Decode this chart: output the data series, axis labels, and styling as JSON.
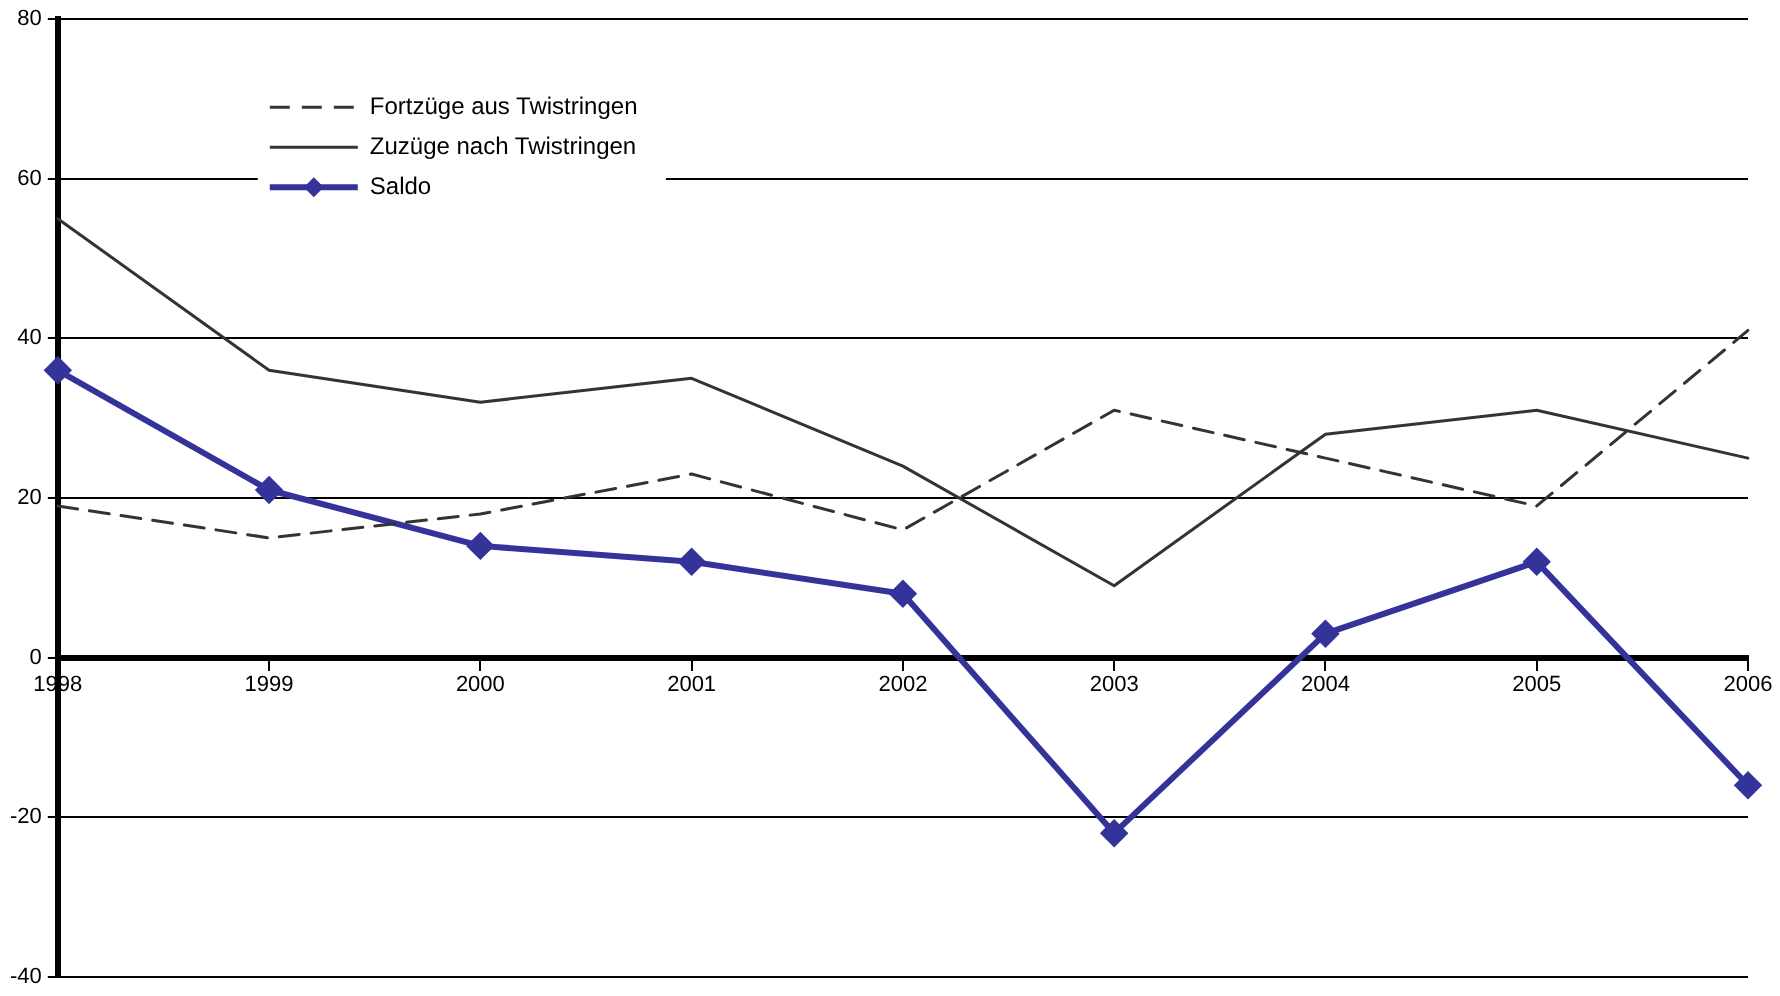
{
  "chart_data": {
    "type": "line",
    "categories": [
      "1998",
      "1999",
      "2000",
      "2001",
      "2002",
      "2003",
      "2004",
      "2005",
      "2006"
    ],
    "series": [
      {
        "name": "Fortzüge aus Twistringen",
        "color": "#333333",
        "line_style": "dashed",
        "marker": "none",
        "values": [
          19,
          15,
          18,
          23,
          16,
          31,
          25,
          19,
          41
        ]
      },
      {
        "name": "Zuzüge nach Twistringen",
        "color": "#333333",
        "line_style": "solid",
        "marker": "none",
        "values": [
          55,
          36,
          32,
          35,
          24,
          9,
          28,
          31,
          25
        ]
      },
      {
        "name": "Saldo",
        "color": "#333399",
        "line_style": "solid",
        "marker": "diamond",
        "values": [
          36,
          21,
          14,
          12,
          8,
          -22,
          3,
          12,
          -16
        ]
      }
    ],
    "ylim": [
      -40,
      80
    ],
    "yticks": [
      -40,
      -20,
      0,
      20,
      40,
      60,
      80
    ],
    "grid": "y",
    "legend": "top left"
  }
}
